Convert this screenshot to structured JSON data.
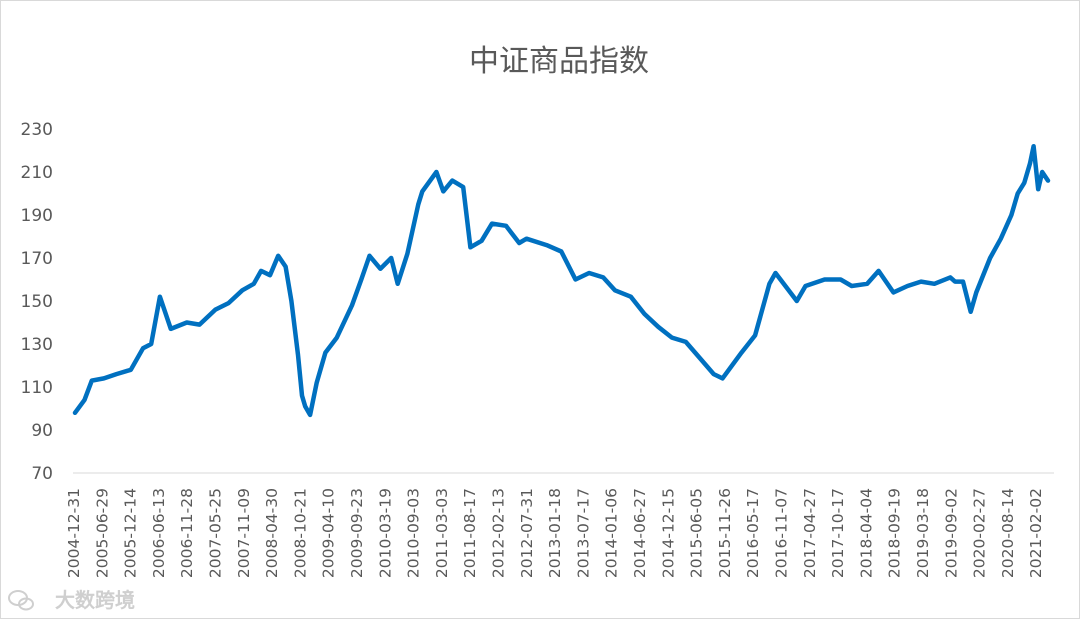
{
  "chart_data": {
    "type": "line",
    "title": "中证商品指数",
    "xlabel": "",
    "ylabel": "",
    "ylim": [
      70,
      230
    ],
    "yticks": [
      70,
      90,
      110,
      130,
      150,
      170,
      190,
      210,
      230
    ],
    "grid": false,
    "legend": "none",
    "line_color": "#0070C0",
    "x_tick_labels": [
      "2004-12-31",
      "2005-06-29",
      "2005-12-14",
      "2006-06-13",
      "2006-11-28",
      "2007-05-25",
      "2007-11-09",
      "2008-04-30",
      "2008-10-21",
      "2009-04-10",
      "2009-09-23",
      "2010-03-19",
      "2010-09-03",
      "2011-03-03",
      "2011-08-17",
      "2012-02-13",
      "2012-07-31",
      "2013-01-18",
      "2013-07-17",
      "2014-01-06",
      "2014-06-27",
      "2014-12-15",
      "2015-06-05",
      "2015-11-26",
      "2016-05-17",
      "2016-11-07",
      "2017-04-27",
      "2017-10-17",
      "2018-04-04",
      "2018-09-19",
      "2019-03-18",
      "2019-09-02",
      "2020-02-27",
      "2020-08-14",
      "2021-02-02"
    ],
    "series": [
      {
        "x": [
          "2004-12-31",
          "2005-02-28",
          "2005-04-15",
          "2005-06-29",
          "2005-09-15",
          "2005-12-14",
          "2006-02-28",
          "2006-04-20",
          "2006-06-13",
          "2006-08-20",
          "2006-11-28",
          "2007-02-15",
          "2007-05-25",
          "2007-08-15",
          "2007-11-09",
          "2008-01-20",
          "2008-03-05",
          "2008-04-30",
          "2008-06-20",
          "2008-08-05",
          "2008-09-10",
          "2008-10-21",
          "2008-11-15",
          "2008-12-05",
          "2009-01-05",
          "2009-02-15",
          "2009-04-10",
          "2009-06-20",
          "2009-09-23",
          "2009-11-20",
          "2010-01-10",
          "2010-03-19",
          "2010-05-25",
          "2010-07-05",
          "2010-09-03",
          "2010-11-10",
          "2010-12-05",
          "2011-03-03",
          "2011-04-15",
          "2011-06-10",
          "2011-08-17",
          "2011-10-01",
          "2011-12-10",
          "2012-02-13",
          "2012-05-10",
          "2012-07-31",
          "2012-09-15",
          "2013-01-18",
          "2013-04-20",
          "2013-07-17",
          "2013-10-10",
          "2014-01-06",
          "2014-03-20",
          "2014-06-27",
          "2014-09-20",
          "2014-12-15",
          "2015-03-10",
          "2015-06-05",
          "2015-08-25",
          "2015-11-26",
          "2016-01-20",
          "2016-05-17",
          "2016-08-10",
          "2016-11-07",
          "2016-12-15",
          "2017-02-15",
          "2017-04-27",
          "2017-06-20",
          "2017-10-17",
          "2018-01-25",
          "2018-04-04",
          "2018-07-10",
          "2018-09-19",
          "2018-12-20",
          "2019-03-18",
          "2019-06-10",
          "2019-09-02",
          "2019-12-10",
          "2020-01-08",
          "2020-02-27",
          "2020-04-15",
          "2020-05-20",
          "2020-08-14",
          "2020-10-20",
          "2020-12-25",
          "2021-02-02",
          "2021-03-15",
          "2021-04-20",
          "2021-05-12",
          "2021-06-10",
          "2021-07-05",
          "2021-08-10"
        ],
        "values": [
          98,
          104,
          113,
          114,
          116,
          118,
          128,
          130,
          152,
          137,
          140,
          139,
          146,
          149,
          155,
          158,
          164,
          162,
          171,
          166,
          150,
          125,
          106,
          101,
          97,
          112,
          126,
          133,
          148,
          160,
          171,
          165,
          170,
          158,
          172,
          195,
          201,
          210,
          201,
          206,
          203,
          175,
          178,
          186,
          185,
          177,
          179,
          176,
          173,
          160,
          163,
          161,
          155,
          152,
          144,
          138,
          133,
          131,
          124,
          116,
          114,
          126,
          134,
          158,
          163,
          157,
          150,
          157,
          160,
          160,
          157,
          158,
          164,
          154,
          157,
          159,
          158,
          161,
          159,
          159,
          145,
          154,
          170,
          179,
          190,
          200,
          205,
          214,
          222,
          202,
          210,
          206
        ]
      }
    ]
  },
  "watermark": {
    "icon": "wechat-logo-icon",
    "text": "大数跨境"
  }
}
